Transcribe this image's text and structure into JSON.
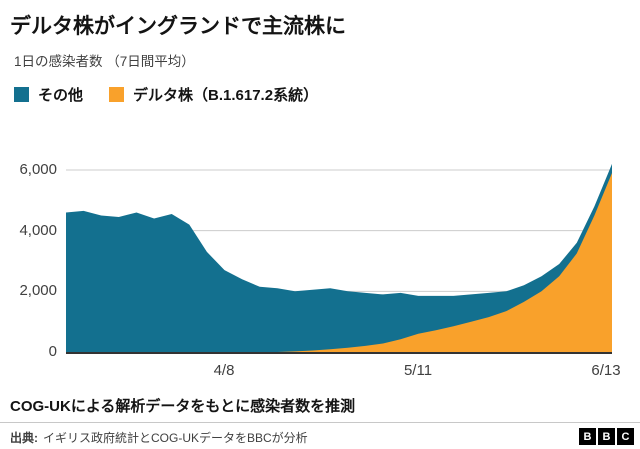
{
  "header": {
    "title": "デルタ株がイングランドで主流株に",
    "subtitle": "1日の感染者数 （7日間平均）"
  },
  "legend": {
    "items": [
      {
        "label": "その他",
        "color": "#13708F"
      },
      {
        "label": "デルタ株（B.1.617.2系統）",
        "color": "#F9A12B"
      }
    ]
  },
  "chart_data": {
    "type": "area",
    "stacked": true,
    "title": "デルタ株がイングランドで主流株に",
    "subtitle": "1日の感染者数 （7日間平均）",
    "ylim": [
      0,
      6400
    ],
    "grid": "horizontal",
    "legend_position": "top",
    "days": [
      0,
      3,
      6,
      9,
      12,
      15,
      18,
      21,
      24,
      27,
      30,
      33,
      36,
      39,
      42,
      45,
      48,
      51,
      54,
      57,
      60,
      63,
      66,
      69,
      72,
      75,
      78,
      81,
      84,
      87,
      90,
      93
    ],
    "series": [
      {
        "name": "デルタ株（B.1.617.2系統）",
        "color": "#F9A12B",
        "values": [
          0,
          0,
          0,
          0,
          0,
          0,
          0,
          0,
          0,
          0,
          0,
          0,
          0,
          20,
          50,
          90,
          140,
          200,
          280,
          420,
          600,
          720,
          850,
          1000,
          1150,
          1350,
          1650,
          2000,
          2500,
          3250,
          4500,
          5900
        ]
      },
      {
        "name": "その他",
        "color": "#13708F",
        "values": [
          4600,
          4650,
          4500,
          4450,
          4600,
          4400,
          4550,
          4200,
          3300,
          2700,
          2400,
          2150,
          2100,
          1980,
          2000,
          2010,
          1860,
          1750,
          1620,
          1530,
          1250,
          1130,
          1000,
          900,
          800,
          650,
          550,
          500,
          400,
          350,
          300,
          300
        ]
      }
    ],
    "y_ticks": [
      {
        "label": "6,000",
        "value": 6000
      },
      {
        "label": "4,000",
        "value": 4000
      },
      {
        "label": "2,000",
        "value": 2000
      },
      {
        "label": "0",
        "value": 0
      }
    ],
    "x_ticks": [
      {
        "label": "4/8",
        "day": 27
      },
      {
        "label": "5/11",
        "day": 60
      },
      {
        "label": "6/13",
        "day": 93
      }
    ]
  },
  "footer": {
    "note": "COG-UKによる解析データをもとに感染者数を推測",
    "source_label": "出典:",
    "source_text": "イギリス政府統計とCOG-UKデータをBBCが分析",
    "logo_letters": [
      "B",
      "B",
      "C"
    ]
  }
}
